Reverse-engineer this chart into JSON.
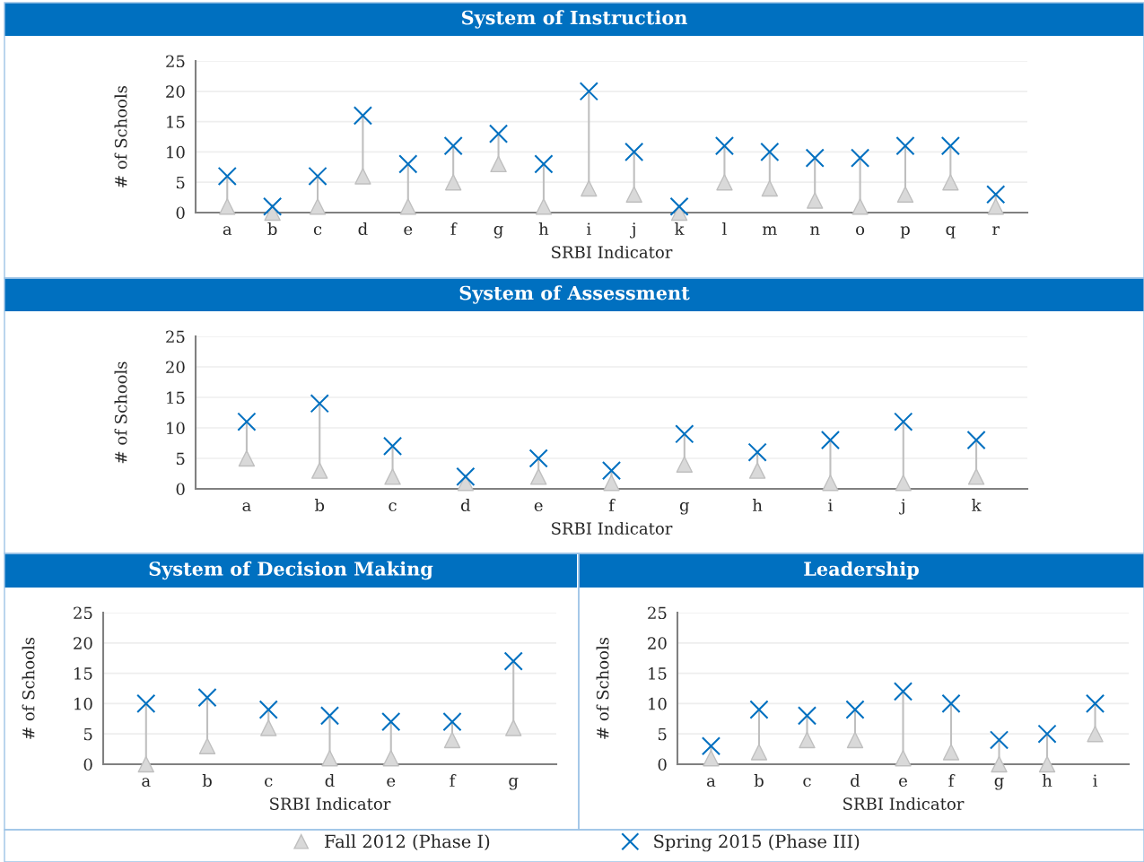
{
  "chart_data": [
    {
      "type": "scatter",
      "title": "System of Instruction",
      "xlabel": "SRBI Indicator",
      "ylabel": "# of Schools",
      "categories": [
        "a",
        "b",
        "c",
        "d",
        "e",
        "f",
        "g",
        "h",
        "i",
        "j",
        "k",
        "l",
        "m",
        "n",
        "o",
        "p",
        "q",
        "r"
      ],
      "series": [
        {
          "name": "Fall 2012 (Phase I)",
          "color": "#d9d9d9",
          "marker": "triangle",
          "values": [
            1,
            0,
            1,
            6,
            1,
            5,
            8,
            1,
            4,
            3,
            0,
            5,
            4,
            2,
            1,
            3,
            5,
            1
          ]
        },
        {
          "name": "Spring 2015 (Phase III)",
          "color": "#0070c0",
          "marker": "cross",
          "values": [
            6,
            1,
            6,
            16,
            8,
            11,
            13,
            8,
            20,
            10,
            1,
            11,
            10,
            9,
            9,
            11,
            11,
            3
          ]
        }
      ],
      "ylim": [
        0,
        25
      ],
      "yticks": [
        0,
        5,
        10,
        15,
        20,
        25
      ],
      "grid": "y",
      "legend": "bottom"
    },
    {
      "type": "scatter",
      "title": "System of Assessment",
      "xlabel": "SRBI Indicator",
      "ylabel": "# of Schools",
      "categories": [
        "a",
        "b",
        "c",
        "d",
        "e",
        "f",
        "g",
        "h",
        "i",
        "j",
        "k"
      ],
      "series": [
        {
          "name": "Fall 2012 (Phase I)",
          "color": "#d9d9d9",
          "marker": "triangle",
          "values": [
            5,
            3,
            2,
            1,
            2,
            1,
            4,
            3,
            1,
            1,
            2
          ]
        },
        {
          "name": "Spring 2015 (Phase III)",
          "color": "#0070c0",
          "marker": "cross",
          "values": [
            11,
            14,
            7,
            2,
            5,
            3,
            9,
            6,
            8,
            11,
            8
          ]
        }
      ],
      "ylim": [
        0,
        25
      ],
      "yticks": [
        0,
        5,
        10,
        15,
        20,
        25
      ],
      "grid": "y",
      "legend": "bottom"
    },
    {
      "type": "scatter",
      "title": "System of Decision Making",
      "xlabel": "SRBI Indicator",
      "ylabel": "# of Schools",
      "categories": [
        "a",
        "b",
        "c",
        "d",
        "e",
        "f",
        "g"
      ],
      "series": [
        {
          "name": "Fall 2012 (Phase I)",
          "color": "#d9d9d9",
          "marker": "triangle",
          "values": [
            0,
            3,
            6,
            1,
            1,
            4,
            6
          ]
        },
        {
          "name": "Spring 2015 (Phase III)",
          "color": "#0070c0",
          "marker": "cross",
          "values": [
            10,
            11,
            9,
            8,
            7,
            7,
            17
          ]
        }
      ],
      "ylim": [
        0,
        25
      ],
      "yticks": [
        0,
        5,
        10,
        15,
        20,
        25
      ],
      "grid": "y",
      "legend": "bottom"
    },
    {
      "type": "scatter",
      "title": "Leadership",
      "xlabel": "SRBI Indicator",
      "ylabel": "# of Schools",
      "categories": [
        "a",
        "b",
        "c",
        "d",
        "e",
        "f",
        "g",
        "h",
        "i"
      ],
      "series": [
        {
          "name": "Fall 2012 (Phase I)",
          "color": "#d9d9d9",
          "marker": "triangle",
          "values": [
            1,
            2,
            4,
            4,
            1,
            2,
            0,
            0,
            5
          ]
        },
        {
          "name": "Spring 2015 (Phase III)",
          "color": "#0070c0",
          "marker": "cross",
          "values": [
            3,
            9,
            8,
            9,
            12,
            10,
            4,
            5,
            10
          ]
        }
      ],
      "ylim": [
        0,
        25
      ],
      "yticks": [
        0,
        5,
        10,
        15,
        20,
        25
      ],
      "grid": "y",
      "legend": "bottom"
    }
  ]
}
